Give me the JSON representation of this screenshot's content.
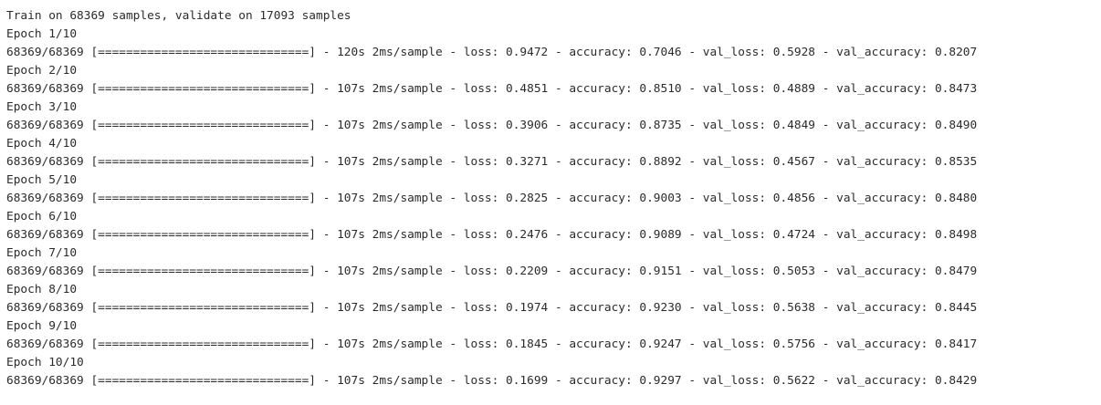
{
  "header": "Train on 68369 samples, validate on 17093 samples",
  "epochs": [
    {
      "epoch_label": "Epoch 1/10",
      "progress_line": "68369/68369 [==============================] - 120s 2ms/sample - loss: 0.9472 - accuracy: 0.7046 - val_loss: 0.5928 - val_accuracy: 0.8207"
    },
    {
      "epoch_label": "Epoch 2/10",
      "progress_line": "68369/68369 [==============================] - 107s 2ms/sample - loss: 0.4851 - accuracy: 0.8510 - val_loss: 0.4889 - val_accuracy: 0.8473"
    },
    {
      "epoch_label": "Epoch 3/10",
      "progress_line": "68369/68369 [==============================] - 107s 2ms/sample - loss: 0.3906 - accuracy: 0.8735 - val_loss: 0.4849 - val_accuracy: 0.8490"
    },
    {
      "epoch_label": "Epoch 4/10",
      "progress_line": "68369/68369 [==============================] - 107s 2ms/sample - loss: 0.3271 - accuracy: 0.8892 - val_loss: 0.4567 - val_accuracy: 0.8535"
    },
    {
      "epoch_label": "Epoch 5/10",
      "progress_line": "68369/68369 [==============================] - 107s 2ms/sample - loss: 0.2825 - accuracy: 0.9003 - val_loss: 0.4856 - val_accuracy: 0.8480"
    },
    {
      "epoch_label": "Epoch 6/10",
      "progress_line": "68369/68369 [==============================] - 107s 2ms/sample - loss: 0.2476 - accuracy: 0.9089 - val_loss: 0.4724 - val_accuracy: 0.8498"
    },
    {
      "epoch_label": "Epoch 7/10",
      "progress_line": "68369/68369 [==============================] - 107s 2ms/sample - loss: 0.2209 - accuracy: 0.9151 - val_loss: 0.5053 - val_accuracy: 0.8479"
    },
    {
      "epoch_label": "Epoch 8/10",
      "progress_line": "68369/68369 [==============================] - 107s 2ms/sample - loss: 0.1974 - accuracy: 0.9230 - val_loss: 0.5638 - val_accuracy: 0.8445"
    },
    {
      "epoch_label": "Epoch 9/10",
      "progress_line": "68369/68369 [==============================] - 107s 2ms/sample - loss: 0.1845 - accuracy: 0.9247 - val_loss: 0.5756 - val_accuracy: 0.8417"
    },
    {
      "epoch_label": "Epoch 10/10",
      "progress_line": "68369/68369 [==============================] - 107s 2ms/sample - loss: 0.1699 - accuracy: 0.9297 - val_loss: 0.5622 - val_accuracy: 0.8429"
    }
  ]
}
